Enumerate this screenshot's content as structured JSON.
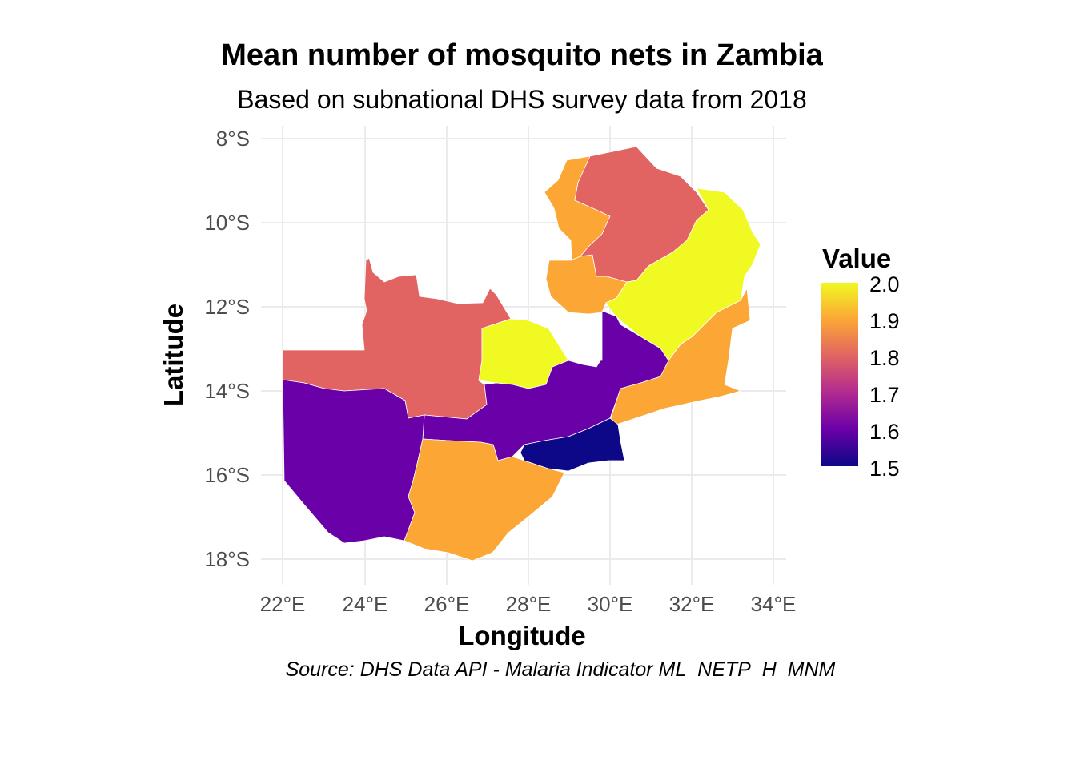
{
  "title": "Mean number of mosquito nets in Zambia",
  "subtitle": "Based on subnational DHS survey data from 2018",
  "caption": "Source: DHS Data API - Malaria Indicator ML_NETP_H_MNM",
  "chart_data": {
    "type": "choropleth",
    "xlabel": "Longitude",
    "ylabel": "Latitude",
    "x_ticks": [
      "22°E",
      "24°E",
      "26°E",
      "28°E",
      "30°E",
      "32°E",
      "34°E"
    ],
    "y_ticks": [
      "8°S",
      "10°S",
      "12°S",
      "14°S",
      "16°S",
      "18°S"
    ],
    "xlim": [
      22,
      34
    ],
    "ylim": [
      -18,
      -8
    ],
    "grid": true,
    "legend": {
      "title": "Value",
      "position": "right",
      "labels": [
        "2.0",
        "1.9",
        "1.8",
        "1.7",
        "1.6",
        "1.5"
      ],
      "range": [
        1.5,
        2.0
      ],
      "palette": [
        "#0d0887",
        "#6a00a8",
        "#b12a90",
        "#e16462",
        "#fca636",
        "#f0f921"
      ]
    },
    "regions": [
      {
        "value": 1.8,
        "color": "#e16462"
      },
      {
        "value": 1.9,
        "color": "#fca636"
      },
      {
        "value": 1.9,
        "color": "#fca636"
      },
      {
        "value": 2.0,
        "color": "#f0f921"
      },
      {
        "value": 1.8,
        "color": "#e16462"
      },
      {
        "value": 2.0,
        "color": "#f0f921"
      },
      {
        "value": 1.9,
        "color": "#fca636"
      },
      {
        "value": 1.6,
        "color": "#6a00a8"
      },
      {
        "value": 1.6,
        "color": "#6a00a8"
      },
      {
        "value": 1.9,
        "color": "#fca636"
      },
      {
        "value": 1.5,
        "color": "#0d0887"
      }
    ]
  }
}
